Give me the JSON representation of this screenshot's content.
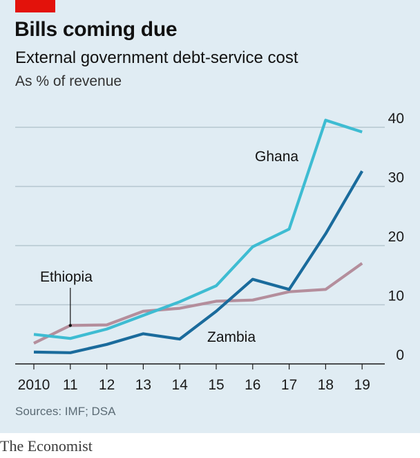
{
  "header": {
    "title": "Bills coming due",
    "subtitle": "External government debt-service cost",
    "unit": "As % of revenue"
  },
  "footer": {
    "source": "Sources: IMF; DSA",
    "brand": "The Economist"
  },
  "colors": {
    "background": "#e0ecf3",
    "brand_red": "#e3120b",
    "grid": "#b5c6d0",
    "axis": "#1a1a1a"
  },
  "chart_data": {
    "type": "line",
    "x": [
      "2010",
      "11",
      "12",
      "13",
      "14",
      "15",
      "16",
      "17",
      "18",
      "19"
    ],
    "ylim": [
      0,
      40
    ],
    "yticks": [
      0,
      10,
      20,
      30,
      40
    ],
    "yaxis_side": "right",
    "grid": true,
    "series": [
      {
        "name": "Ethiopia",
        "color": "#b48e9c",
        "values": [
          3.5,
          6.5,
          6.6,
          8.9,
          9.4,
          10.6,
          10.8,
          12.2,
          12.6,
          17.0
        ]
      },
      {
        "name": "Zambia",
        "color": "#1a6b9c",
        "values": [
          2.0,
          1.9,
          3.3,
          5.1,
          4.2,
          8.9,
          14.3,
          12.6,
          22.0,
          32.6
        ]
      },
      {
        "name": "Ghana",
        "color": "#3ebcd2",
        "values": [
          5.0,
          4.3,
          5.9,
          8.2,
          10.5,
          13.2,
          19.8,
          22.8,
          41.2,
          39.2
        ]
      }
    ]
  }
}
